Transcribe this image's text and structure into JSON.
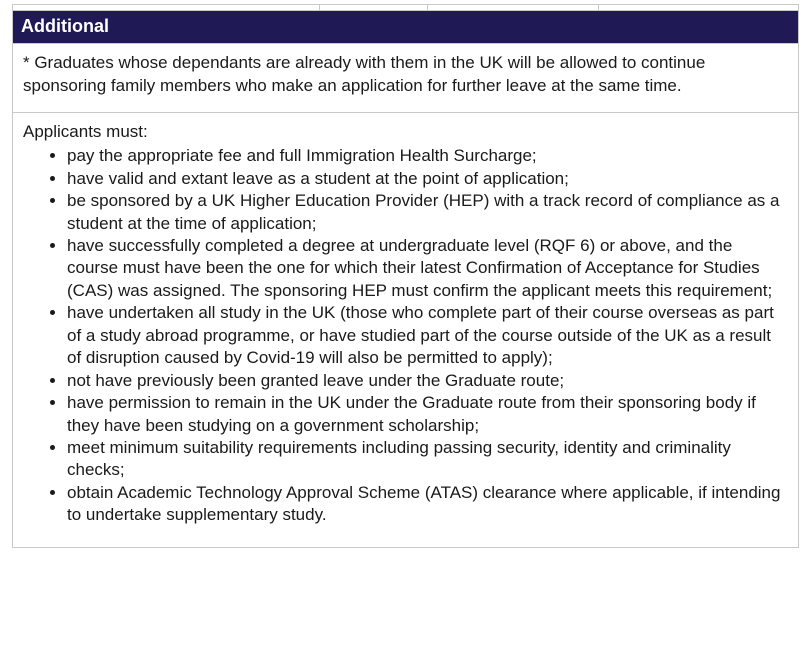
{
  "colors": {
    "header_bg": "#1f1a55",
    "header_text": "#ffffff",
    "border": "#c9c9c9",
    "text": "#1a1a1a",
    "page_bg": "#ffffff"
  },
  "top_strip": {
    "column_count": 4,
    "column_widths_pct": [
      39.0,
      13.7,
      21.7,
      25.4
    ]
  },
  "header": {
    "title": "Additional"
  },
  "footnote": {
    "text": "* Graduates whose dependants are already with them in the UK will be allowed to continue sponsoring family members who make an application for further leave at the same time."
  },
  "requirements": {
    "intro": "Applicants must:",
    "items": [
      "pay the appropriate fee and full Immigration Health Surcharge;",
      "have valid and extant leave as a student at the point of application;",
      "be sponsored by a UK Higher Education Provider (HEP) with a track record of compliance as a student at the time of application;",
      "have successfully completed a degree at undergraduate level (RQF 6) or above, and the course must have been the one for which their latest Confirmation of Acceptance for Studies (CAS) was assigned. The sponsoring HEP must confirm the applicant meets this requirement;",
      "have undertaken all study in the UK (those who complete part of their course overseas as part of a study abroad programme, or have studied part of the course outside of the UK as a result of disruption caused by Covid-19 will also be permitted to apply);",
      "not have previously been granted leave under the Graduate route;",
      "have permission to remain in the UK under the Graduate route from their sponsoring body if they have been studying on a government scholarship;",
      "meet minimum suitability requirements including passing security, identity and criminality checks;",
      "obtain Academic Technology Approval Scheme (ATAS) clearance where applicable, if intending to undertake supplementary study."
    ]
  }
}
